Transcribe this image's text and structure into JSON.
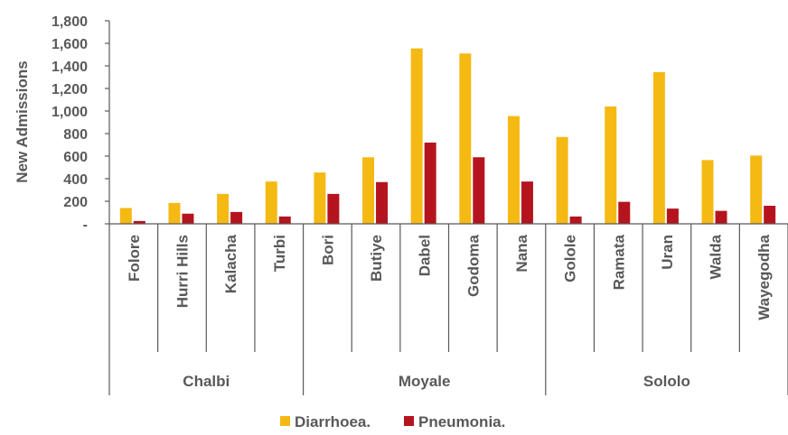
{
  "chart_data": {
    "type": "bar",
    "ylabel": "New Admissions",
    "ylim": [
      0,
      1800
    ],
    "yticks": [
      {
        "value": 0,
        "label": "-"
      },
      {
        "value": 200,
        "label": "200"
      },
      {
        "value": 400,
        "label": "400"
      },
      {
        "value": 600,
        "label": "600"
      },
      {
        "value": 800,
        "label": "800"
      },
      {
        "value": 1000,
        "label": "1,000"
      },
      {
        "value": 1200,
        "label": "1,200"
      },
      {
        "value": 1400,
        "label": "1,400"
      },
      {
        "value": 1600,
        "label": "1,600"
      },
      {
        "value": 1800,
        "label": "1,800"
      }
    ],
    "grid": false,
    "legend": "bottom",
    "categories": [
      "Folore",
      "Hurri Hills",
      "Kalacha",
      "Turbi",
      "Bori",
      "Butiye",
      "Dabel",
      "Godoma",
      "Nana",
      "Golole",
      "Ramata",
      "Uran",
      "Walda",
      "Wayegodha"
    ],
    "groups": [
      {
        "label": "Chalbi",
        "count": 4
      },
      {
        "label": "Moyale",
        "count": 5
      },
      {
        "label": "Sololo",
        "count": 5
      }
    ],
    "series": [
      {
        "name": "Diarrhoea.",
        "color": "#F5B914",
        "values": [
          140,
          185,
          265,
          375,
          455,
          590,
          1555,
          1510,
          955,
          770,
          1040,
          1345,
          565,
          605
        ]
      },
      {
        "name": "Pneumonia.",
        "color": "#B5141E",
        "values": [
          25,
          90,
          105,
          65,
          265,
          370,
          720,
          590,
          375,
          65,
          195,
          135,
          115,
          160
        ]
      }
    ]
  }
}
